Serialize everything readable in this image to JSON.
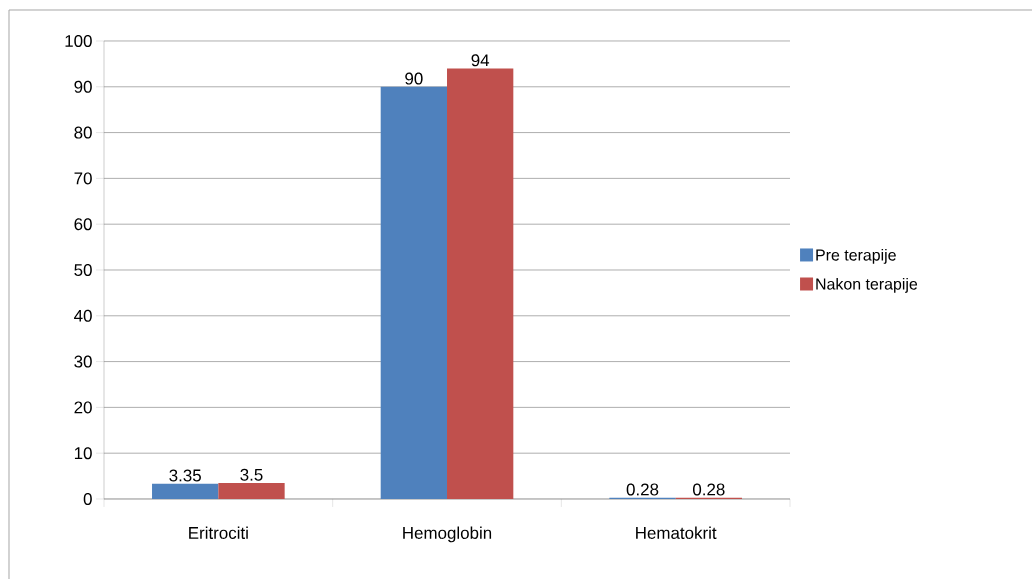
{
  "chart_data": {
    "type": "bar",
    "categories": [
      "Eritrociti",
      "Hemoglobin",
      "Hematokrit"
    ],
    "series": [
      {
        "name": "Pre terapije",
        "color": "#4f81bd",
        "values": [
          3.35,
          90,
          0.28
        ]
      },
      {
        "name": "Nakon terapije",
        "color": "#c0504d",
        "values": [
          3.5,
          94,
          0.28
        ]
      }
    ],
    "ylim": [
      0,
      100
    ],
    "yticks": [
      0,
      10,
      20,
      30,
      40,
      50,
      60,
      70,
      80,
      90,
      100
    ],
    "grid": "y",
    "legend": "right",
    "data_labels": true
  }
}
